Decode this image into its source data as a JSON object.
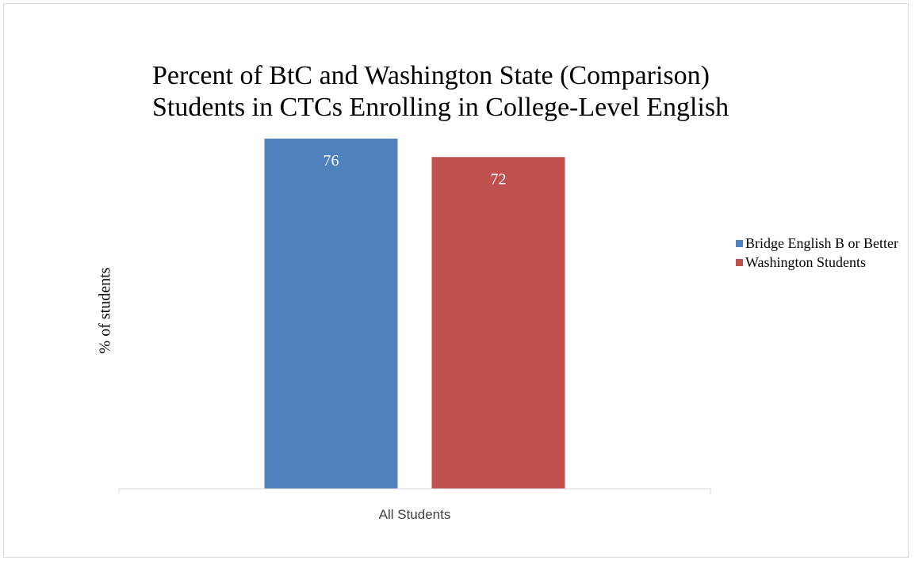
{
  "chart_data": {
    "type": "bar",
    "title": "Percent of BtC and Washington State (Comparison) Students in CTCs Enrolling in College-Level English",
    "title_lines": [
      "Percent of BtC and Washington State (Comparison)",
      "Students in CTCs Enrolling in College-Level English"
    ],
    "ylabel": "% of students",
    "categories": [
      "All Students"
    ],
    "series": [
      {
        "name": "Bridge English B or Better",
        "values": [
          76
        ],
        "color": "#4f81bd"
      },
      {
        "name": "Washington Students",
        "values": [
          72
        ],
        "color": "#c0504d"
      }
    ],
    "ylim": [
      0,
      76
    ],
    "grid": false,
    "legend_position": "right",
    "data_labels": true
  }
}
